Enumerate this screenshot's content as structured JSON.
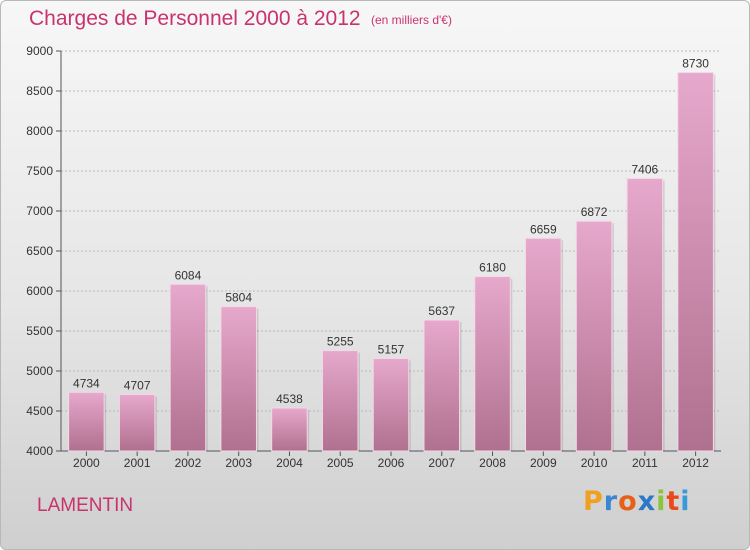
{
  "chart_data": {
    "type": "bar",
    "title": "Charges de Personnel 2000 à 2012",
    "subtitle": "(en milliers d'€)",
    "categories": [
      "2000",
      "2001",
      "2002",
      "2003",
      "2004",
      "2005",
      "2006",
      "2007",
      "2008",
      "2009",
      "2010",
      "2011",
      "2012"
    ],
    "values": [
      4734,
      4707,
      6084,
      5804,
      4538,
      5255,
      5157,
      5637,
      6180,
      6659,
      6872,
      7406,
      8730
    ],
    "ylim": [
      4000,
      9000
    ],
    "yticks": [
      4000,
      4500,
      5000,
      5500,
      6000,
      6500,
      7000,
      7500,
      8000,
      8500,
      9000
    ],
    "grid": true,
    "colors": {
      "bar_top": "#e6a8cc",
      "bar_bottom": "#b0708f",
      "title": "#c8336e"
    }
  },
  "footer": {
    "commune": "LAMENTIN",
    "logo_letters": [
      {
        "char": "P",
        "color": "#f0a020"
      },
      {
        "char": "r",
        "color": "#3a86d0"
      },
      {
        "char": "o",
        "color": "#e86018"
      },
      {
        "char": "x",
        "color": "#2a78c8"
      },
      {
        "char": "i",
        "color": "#8cc43c"
      },
      {
        "char": "t",
        "color": "#e84a1a"
      },
      {
        "char": "i",
        "color": "#3a9ad8"
      }
    ]
  }
}
